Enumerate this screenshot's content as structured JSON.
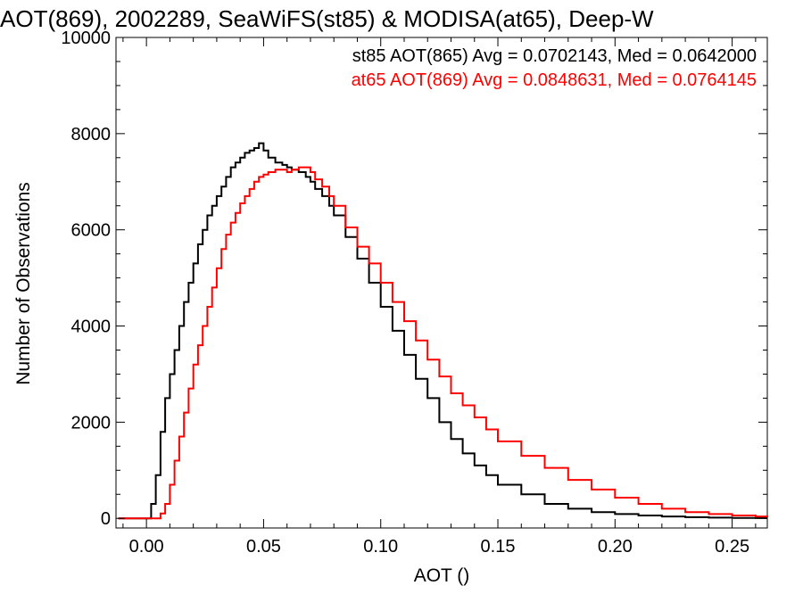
{
  "chart_data": {
    "type": "line",
    "title": "AOT(869), 2002289, SeaWiFS(st85) & MODISA(at65), Deep-W",
    "xlabel": "AOT ()",
    "ylabel": "Number of Observations",
    "xlim": [
      -0.013,
      0.265
    ],
    "ylim": [
      -200,
      10000
    ],
    "x_ticks": [
      0.0,
      0.05,
      0.1,
      0.15,
      0.2,
      0.25
    ],
    "x_tick_labels": [
      "0.00",
      "0.05",
      "0.10",
      "0.15",
      "0.20",
      "0.25"
    ],
    "y_ticks": [
      0,
      2000,
      4000,
      6000,
      8000,
      10000
    ],
    "y_tick_labels": [
      "0",
      "2000",
      "4000",
      "6000",
      "8000",
      "10000"
    ],
    "grid": false,
    "legend_placement": "top-right",
    "series": [
      {
        "name": "st85",
        "stat_text": "st85 AOT(865) Avg = 0.0702143, Med = 0.0642000",
        "color": "#000000",
        "x": [
          -0.012,
          0.0,
          0.002,
          0.004,
          0.006,
          0.008,
          0.01,
          0.012,
          0.014,
          0.016,
          0.018,
          0.02,
          0.022,
          0.024,
          0.026,
          0.028,
          0.03,
          0.032,
          0.034,
          0.036,
          0.038,
          0.04,
          0.042,
          0.044,
          0.046,
          0.048,
          0.05,
          0.052,
          0.055,
          0.058,
          0.06,
          0.062,
          0.065,
          0.068,
          0.07,
          0.072,
          0.075,
          0.078,
          0.08,
          0.085,
          0.09,
          0.095,
          0.1,
          0.105,
          0.11,
          0.115,
          0.12,
          0.125,
          0.13,
          0.135,
          0.14,
          0.145,
          0.15,
          0.16,
          0.17,
          0.18,
          0.19,
          0.2,
          0.21,
          0.22,
          0.23,
          0.24,
          0.25,
          0.26,
          0.265
        ],
        "values": [
          0,
          0,
          300,
          900,
          1800,
          2500,
          3000,
          3500,
          4000,
          4500,
          4900,
          5300,
          5700,
          6000,
          6300,
          6500,
          6700,
          6900,
          7100,
          7300,
          7400,
          7500,
          7600,
          7650,
          7700,
          7800,
          7650,
          7500,
          7400,
          7350,
          7300,
          7250,
          7200,
          7100,
          7000,
          6850,
          6700,
          6500,
          6300,
          5850,
          5400,
          4900,
          4400,
          3900,
          3400,
          2900,
          2500,
          2000,
          1650,
          1350,
          1100,
          900,
          700,
          500,
          300,
          200,
          130,
          90,
          60,
          40,
          25,
          15,
          10,
          5,
          5
        ]
      },
      {
        "name": "at65",
        "stat_text": "at65 AOT(869) Avg = 0.0848631, Med = 0.0764145",
        "color": "#ff0000",
        "x": [
          -0.012,
          0.004,
          0.006,
          0.008,
          0.01,
          0.012,
          0.014,
          0.016,
          0.018,
          0.02,
          0.022,
          0.024,
          0.026,
          0.028,
          0.03,
          0.032,
          0.034,
          0.036,
          0.038,
          0.04,
          0.042,
          0.044,
          0.046,
          0.048,
          0.05,
          0.052,
          0.055,
          0.058,
          0.06,
          0.062,
          0.065,
          0.068,
          0.07,
          0.072,
          0.075,
          0.078,
          0.08,
          0.085,
          0.09,
          0.095,
          0.1,
          0.105,
          0.11,
          0.115,
          0.12,
          0.125,
          0.13,
          0.135,
          0.14,
          0.145,
          0.15,
          0.16,
          0.17,
          0.18,
          0.19,
          0.2,
          0.21,
          0.22,
          0.23,
          0.24,
          0.25,
          0.26,
          0.265
        ],
        "values": [
          0,
          0,
          100,
          300,
          700,
          1200,
          1700,
          2200,
          2700,
          3200,
          3600,
          4000,
          4400,
          4800,
          5200,
          5600,
          5900,
          6150,
          6350,
          6550,
          6700,
          6850,
          7000,
          7100,
          7150,
          7200,
          7250,
          7250,
          7200,
          7250,
          7300,
          7300,
          7200,
          7050,
          6900,
          6700,
          6500,
          6050,
          5650,
          5300,
          4900,
          4500,
          4100,
          3700,
          3300,
          2950,
          2600,
          2350,
          2100,
          1850,
          1600,
          1300,
          1050,
          800,
          600,
          430,
          300,
          200,
          130,
          90,
          60,
          40,
          30
        ]
      }
    ]
  }
}
